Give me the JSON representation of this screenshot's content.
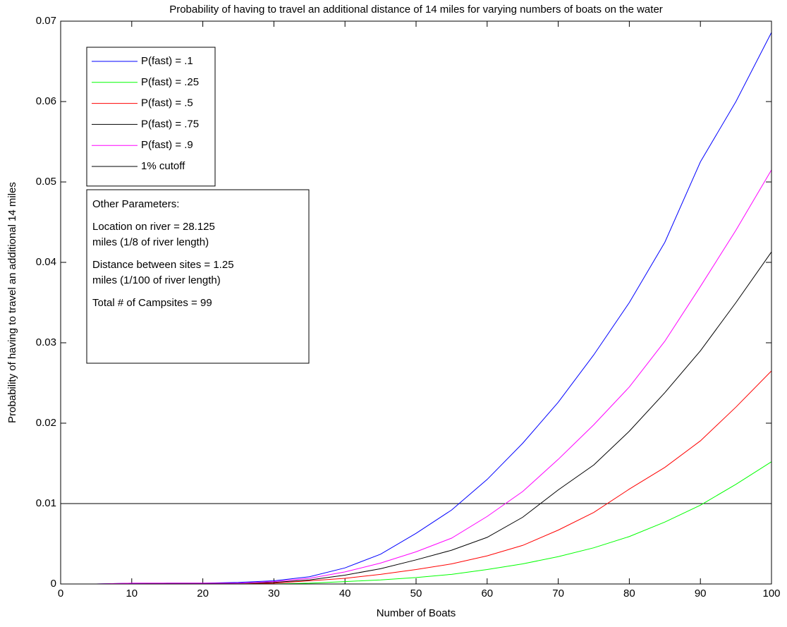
{
  "chart_data": {
    "type": "line",
    "title": "Probability of having to travel an additional distance of 14 miles for varying numbers of boats on the water",
    "x_label": "Number of Boats",
    "y_label": "Probability of having to travel an additional 14 miles",
    "x": [
      0,
      5,
      10,
      15,
      20,
      25,
      30,
      35,
      40,
      45,
      50,
      55,
      60,
      65,
      70,
      75,
      80,
      85,
      90,
      95,
      100
    ],
    "series": [
      {
        "name": "P(fast) = .1",
        "color": "#0000ff",
        "values": [
          0,
          0,
          0.0001,
          0.0001,
          0.0001,
          0.0002,
          0.0004,
          0.0009,
          0.002,
          0.0037,
          0.0063,
          0.0092,
          0.013,
          0.0175,
          0.0226,
          0.0285,
          0.035,
          0.0425,
          0.0525,
          0.06,
          0.0686
        ]
      },
      {
        "name": "P(fast) = .25",
        "color": "#00ff00",
        "values": [
          0,
          0,
          0,
          0,
          0,
          0,
          0,
          0.0001,
          0.0003,
          0.0005,
          0.0008,
          0.0012,
          0.0018,
          0.0025,
          0.0034,
          0.0045,
          0.0059,
          0.0077,
          0.0098,
          0.0124,
          0.0152
        ]
      },
      {
        "name": "P(fast) = .5",
        "color": "#ff0000",
        "values": [
          0,
          0,
          0,
          0,
          0,
          0,
          0.0001,
          0.0004,
          0.0007,
          0.0012,
          0.0018,
          0.0025,
          0.0035,
          0.0048,
          0.0067,
          0.0089,
          0.0118,
          0.0145,
          0.0178,
          0.022,
          0.0265
        ]
      },
      {
        "name": "P(fast) = .75",
        "color": "#000000",
        "values": [
          0,
          0,
          0,
          0.0001,
          0.0001,
          0.0001,
          0.0002,
          0.0005,
          0.0011,
          0.0019,
          0.003,
          0.0042,
          0.0058,
          0.0083,
          0.0117,
          0.0148,
          0.019,
          0.0238,
          0.029,
          0.035,
          0.0413
        ]
      },
      {
        "name": "P(fast) = .9",
        "color": "#ff00ff",
        "values": [
          0,
          0,
          0.0001,
          0.0001,
          0.0001,
          0.0001,
          0.0003,
          0.0007,
          0.0015,
          0.0026,
          0.004,
          0.0057,
          0.0084,
          0.0115,
          0.0155,
          0.0198,
          0.0245,
          0.0302,
          0.037,
          0.044,
          0.0515
        ]
      }
    ],
    "reference_lines": [
      {
        "name": "1% cutoff",
        "value": 0.01,
        "color": "#000000"
      }
    ],
    "annotation": [
      [
        "Other Parameters:"
      ],
      [
        "Location on river = 28.125",
        "miles (1/8 of river length)"
      ],
      [
        "Distance between sites = 1.25",
        "miles (1/100 of river length)"
      ],
      [
        "Total # of Campsites = 99"
      ]
    ],
    "xlim": [
      0,
      100
    ],
    "xticks": [
      0,
      10,
      20,
      30,
      40,
      50,
      60,
      70,
      80,
      90,
      100
    ],
    "ylim": [
      0,
      0.07
    ],
    "yticks": [
      0,
      0.01,
      0.02,
      0.03,
      0.04,
      0.05,
      0.06,
      0.07
    ],
    "grid": false,
    "legend": "upper left"
  }
}
